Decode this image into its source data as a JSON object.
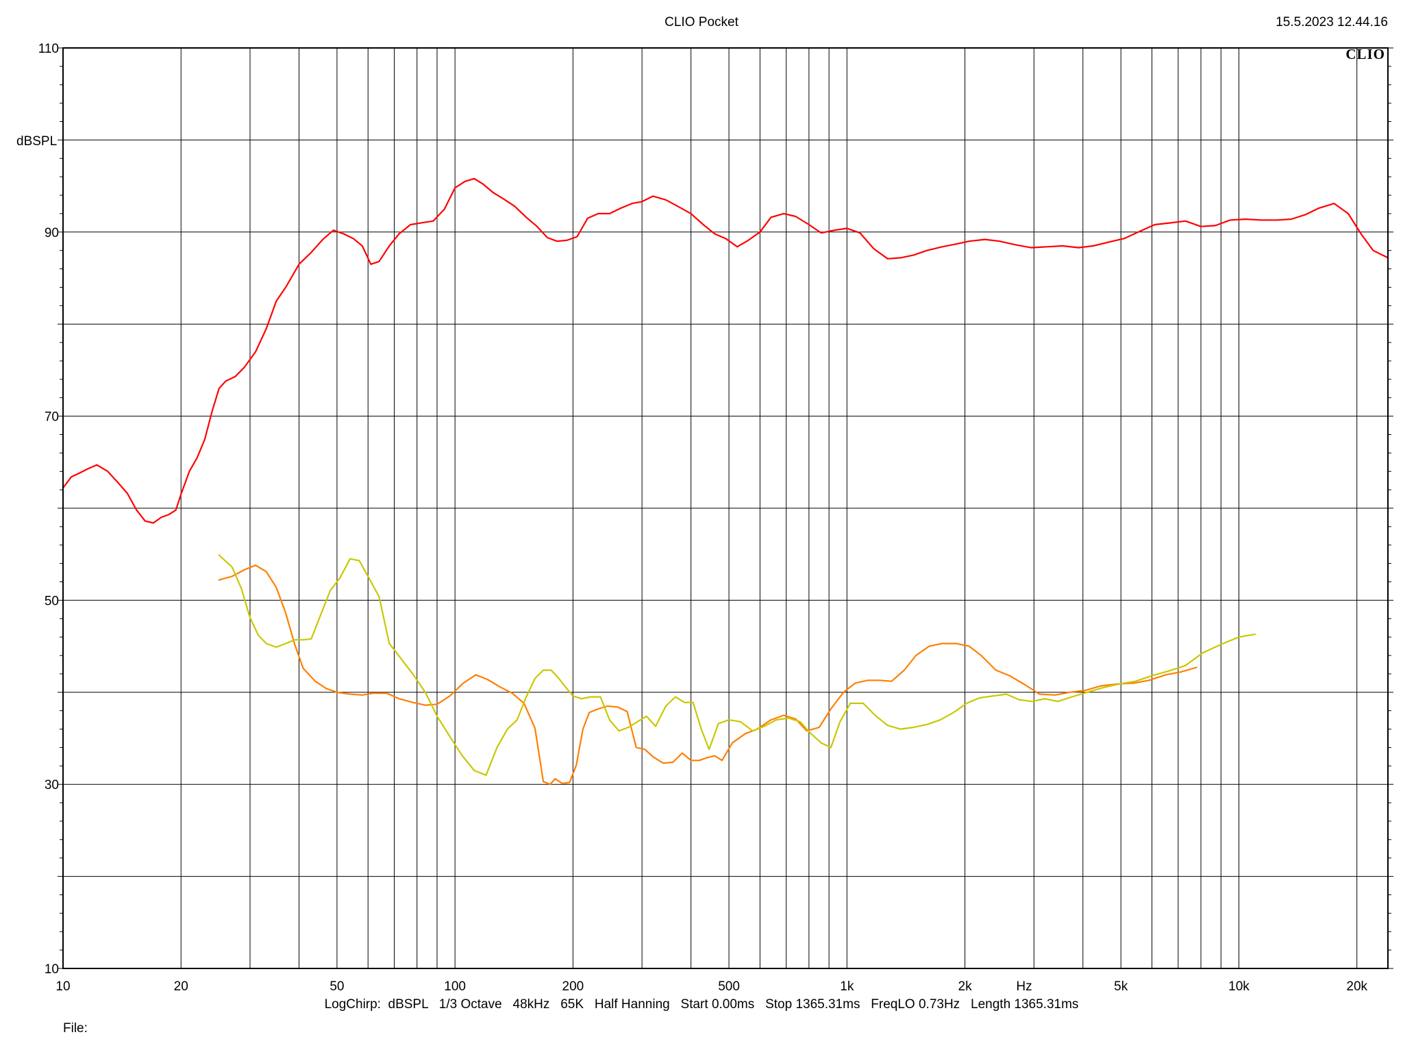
{
  "header": {
    "title": "CLIO Pocket",
    "datetime": "15.5.2023 12.44.16",
    "logo": "CLIO"
  },
  "footer": {
    "settings": "LogChirp:  dBSPL   1/3 Octave   48kHz   65K   Half Hanning   Start 0.00ms   Stop 1365.31ms   FreqLO 0.73Hz   Length 1365.31ms",
    "file_label": "File:"
  },
  "chart_data": {
    "type": "line",
    "title": "",
    "xlabel": "Hz",
    "ylabel": "dBSPL",
    "x_scale": "log",
    "xlim": [
      10,
      24000
    ],
    "ylim": [
      10,
      110
    ],
    "grid": true,
    "x_ticks": [
      {
        "value": 10,
        "label": "10"
      },
      {
        "value": 20,
        "label": "20"
      },
      {
        "value": 50,
        "label": "50"
      },
      {
        "value": 100,
        "label": "100"
      },
      {
        "value": 200,
        "label": "200"
      },
      {
        "value": 500,
        "label": "500"
      },
      {
        "value": 1000,
        "label": "1k"
      },
      {
        "value": 2000,
        "label": "2k"
      },
      {
        "value": 5000,
        "label": "5k"
      },
      {
        "value": 10000,
        "label": "10k"
      },
      {
        "value": 20000,
        "label": "20k"
      }
    ],
    "y_ticks": [
      {
        "value": 10,
        "label": "10"
      },
      {
        "value": 30,
        "label": "30"
      },
      {
        "value": 50,
        "label": "50"
      },
      {
        "value": 70,
        "label": "70"
      },
      {
        "value": 90,
        "label": "90"
      },
      {
        "value": 110,
        "label": "110"
      }
    ],
    "series": [
      {
        "color": "#ff0000",
        "x": [
          10,
          10.5,
          11,
          11.6,
          12.2,
          13,
          13.8,
          14.6,
          15.4,
          16.2,
          17,
          17.8,
          18.6,
          19.4,
          20,
          21,
          22,
          23,
          24,
          25,
          26,
          27.5,
          29,
          31,
          33,
          35,
          37,
          40,
          43,
          46,
          49,
          52,
          55,
          58,
          61,
          64,
          68,
          72,
          77,
          82,
          88,
          94,
          100,
          106,
          112,
          118,
          125,
          133,
          142,
          152,
          162,
          172,
          182,
          193,
          205,
          218,
          232,
          248,
          265,
          283,
          300,
          320,
          345,
          370,
          400,
          430,
          460,
          490,
          525,
          560,
          600,
          640,
          690,
          740,
          800,
          860,
          930,
          1000,
          1080,
          1170,
          1270,
          1370,
          1480,
          1600,
          1750,
          1900,
          2050,
          2250,
          2450,
          2700,
          2950,
          3250,
          3550,
          3900,
          4250,
          4650,
          5100,
          5600,
          6100,
          6700,
          7300,
          8000,
          8700,
          9500,
          10400,
          11400,
          12500,
          13600,
          14800,
          16000,
          17500,
          19000,
          20500,
          22000,
          24000
        ],
        "values": [
          62.2,
          63.4,
          63.8,
          64.3,
          64.7,
          64.0,
          62.8,
          61.6,
          59.8,
          58.6,
          58.4,
          59.0,
          59.3,
          59.8,
          61.5,
          64.0,
          65.5,
          67.5,
          70.5,
          73.0,
          73.8,
          74.3,
          75.3,
          77.0,
          79.5,
          82.5,
          84.0,
          86.5,
          87.8,
          89.2,
          90.2,
          89.8,
          89.3,
          88.5,
          86.5,
          86.8,
          88.5,
          89.8,
          90.8,
          91.0,
          91.2,
          92.5,
          94.8,
          95.5,
          95.8,
          95.2,
          94.3,
          93.6,
          92.8,
          91.6,
          90.6,
          89.4,
          89.0,
          89.1,
          89.5,
          91.5,
          92.0,
          92.0,
          92.6,
          93.1,
          93.3,
          93.9,
          93.5,
          92.8,
          92.0,
          90.8,
          89.8,
          89.3,
          88.4,
          89.1,
          90.0,
          91.6,
          92.0,
          91.7,
          90.8,
          89.9,
          90.2,
          90.4,
          89.9,
          88.2,
          87.1,
          87.2,
          87.5,
          88.0,
          88.4,
          88.7,
          89.0,
          89.2,
          89.0,
          88.6,
          88.3,
          88.4,
          88.5,
          88.3,
          88.5,
          88.9,
          89.3,
          90.1,
          90.8,
          91.0,
          91.2,
          90.6,
          90.7,
          91.3,
          91.4,
          91.3,
          91.3,
          91.4,
          91.9,
          92.6,
          93.1,
          92.0,
          89.8,
          88.0,
          87.2
        ]
      },
      {
        "color": "#ff7f00",
        "x": [
          25,
          27,
          29,
          31,
          33,
          35,
          37,
          39,
          41,
          44,
          47,
          50,
          54,
          58,
          62,
          67,
          72,
          78,
          84,
          90,
          97,
          105,
          113,
          121,
          130,
          140,
          150,
          160,
          168,
          175,
          180,
          188,
          196,
          204,
          212,
          220,
          232,
          245,
          260,
          275,
          290,
          305,
          320,
          340,
          360,
          380,
          400,
          420,
          440,
          460,
          480,
          510,
          550,
          590,
          640,
          690,
          740,
          790,
          850,
          910,
          980,
          1050,
          1130,
          1210,
          1300,
          1400,
          1500,
          1620,
          1750,
          1900,
          2050,
          2200,
          2400,
          2600,
          2850,
          3100,
          3400,
          3700,
          4050,
          4450,
          4900,
          5400,
          5900,
          6500,
          7100,
          7800
        ],
        "values": [
          52.2,
          52.6,
          53.3,
          53.8,
          53.1,
          51.4,
          48.6,
          45.2,
          42.6,
          41.2,
          40.4,
          40.0,
          39.8,
          39.7,
          39.9,
          39.9,
          39.3,
          38.9,
          38.6,
          38.7,
          39.6,
          41.0,
          41.9,
          41.4,
          40.6,
          39.9,
          38.8,
          36.1,
          30.3,
          30.0,
          30.6,
          30.1,
          30.2,
          32.1,
          36.0,
          37.8,
          38.2,
          38.5,
          38.4,
          37.9,
          34.0,
          33.8,
          33.0,
          32.3,
          32.4,
          33.4,
          32.6,
          32.6,
          32.9,
          33.1,
          32.6,
          34.5,
          35.5,
          36.0,
          37.0,
          37.5,
          37.1,
          35.8,
          36.2,
          38.2,
          40.0,
          41.0,
          41.3,
          41.3,
          41.2,
          42.4,
          44.0,
          45.0,
          45.3,
          45.3,
          45.0,
          44.0,
          42.4,
          41.8,
          40.8,
          39.8,
          39.7,
          40.0,
          40.2,
          40.7,
          40.9,
          41.0,
          41.3,
          41.9,
          42.2,
          42.7
        ]
      },
      {
        "color": "#c8c800",
        "x": [
          25,
          27,
          28.5,
          30,
          31.5,
          33,
          35,
          37,
          39,
          41,
          43,
          45.5,
          48,
          51,
          54,
          57,
          60,
          64,
          68,
          73,
          78,
          84,
          90,
          97,
          104,
          112,
          120,
          128,
          136,
          144,
          152,
          160,
          168,
          176,
          184,
          192,
          200,
          210,
          222,
          235,
          248,
          262,
          277,
          292,
          308,
          325,
          345,
          365,
          385,
          405,
          425,
          445,
          470,
          500,
          535,
          575,
          615,
          660,
          710,
          760,
          810,
          860,
          910,
          960,
          1020,
          1100,
          1180,
          1270,
          1370,
          1480,
          1600,
          1730,
          1870,
          2020,
          2180,
          2360,
          2550,
          2750,
          2970,
          3200,
          3450,
          3750,
          4100,
          4500,
          4950,
          5450,
          6000,
          6600,
          7300,
          8100,
          9000,
          10000,
          11000
        ],
        "values": [
          54.9,
          53.6,
          51.3,
          48.1,
          46.2,
          45.3,
          44.9,
          45.3,
          45.7,
          45.7,
          45.8,
          48.5,
          51.0,
          52.5,
          54.5,
          54.3,
          52.6,
          50.4,
          45.3,
          43.6,
          42.0,
          40.0,
          37.4,
          35.2,
          33.2,
          31.5,
          31.0,
          34.0,
          36.0,
          37.0,
          39.5,
          41.5,
          42.4,
          42.4,
          41.5,
          40.5,
          39.6,
          39.3,
          39.5,
          39.5,
          37.0,
          35.8,
          36.2,
          36.8,
          37.4,
          36.3,
          38.5,
          39.5,
          38.9,
          38.9,
          36.0,
          33.8,
          36.6,
          37.0,
          36.8,
          35.8,
          36.3,
          37.0,
          37.2,
          36.8,
          35.5,
          34.5,
          34.0,
          36.8,
          38.8,
          38.8,
          37.5,
          36.4,
          36.0,
          36.2,
          36.5,
          37.0,
          37.8,
          38.8,
          39.4,
          39.6,
          39.8,
          39.2,
          39.0,
          39.3,
          39.0,
          39.5,
          40.0,
          40.5,
          40.9,
          41.2,
          41.8,
          42.3,
          42.9,
          44.3,
          45.2,
          46.0,
          46.3
        ]
      }
    ]
  }
}
